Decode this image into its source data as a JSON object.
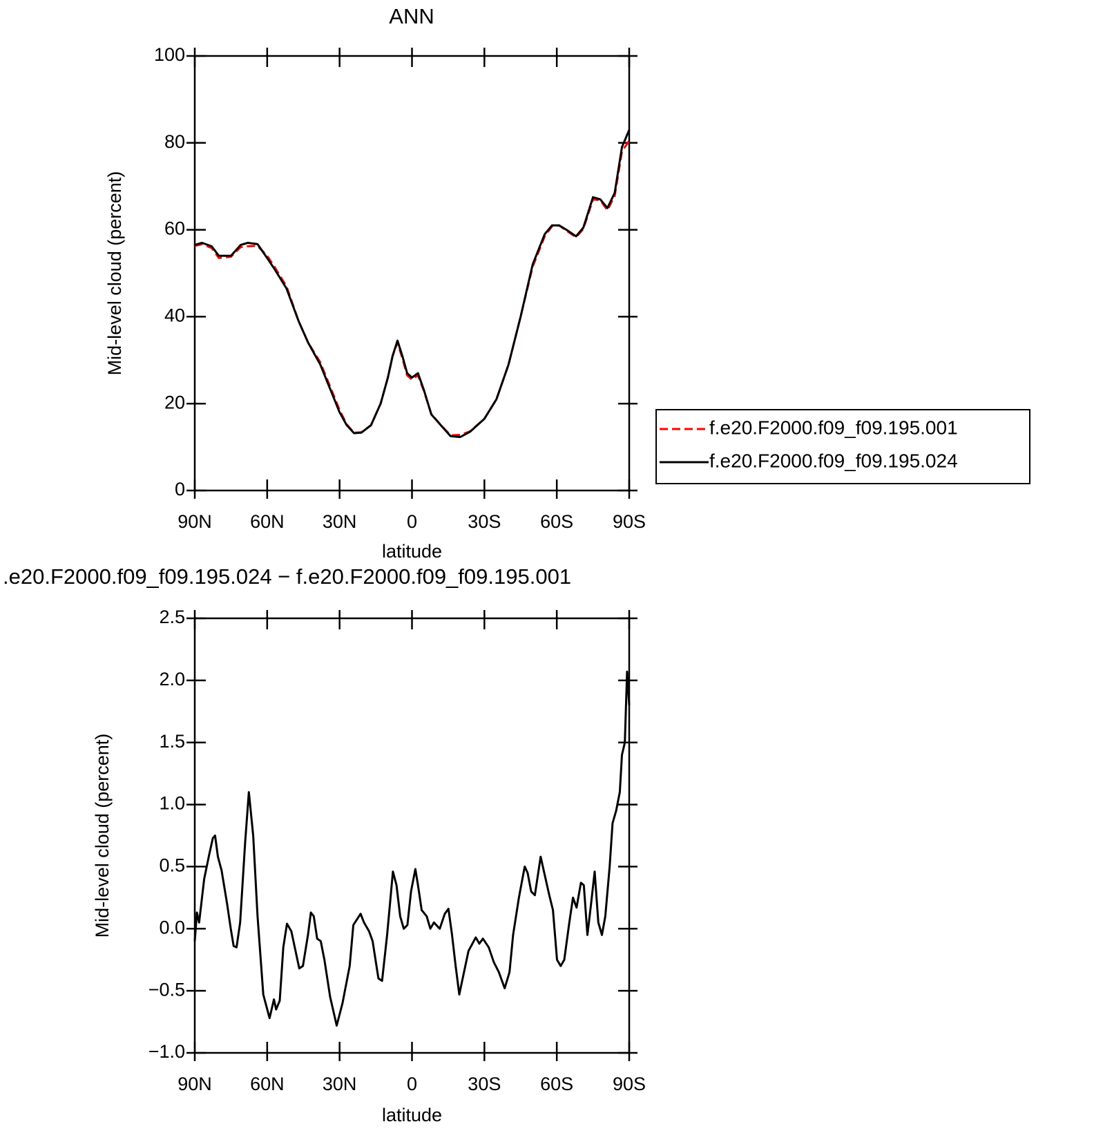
{
  "chart_data": [
    {
      "type": "line",
      "title": "ANN",
      "ylabel": "Mid-level cloud (percent)",
      "xlabel": "latitude",
      "x": [
        90,
        87,
        83,
        80,
        75,
        71,
        68,
        64,
        60,
        57,
        52,
        47,
        43,
        38,
        34,
        30,
        27,
        24,
        21,
        17,
        13,
        10,
        8,
        6,
        4,
        2,
        0,
        -2.5,
        -5,
        -8,
        -12,
        -16,
        -20,
        -24,
        -30,
        -35,
        -40,
        -45,
        -50,
        -55,
        -58,
        -61,
        -64,
        -68,
        -71,
        -75,
        -78,
        -81,
        -84,
        -87,
        -90
      ],
      "xlim": [
        90,
        -90
      ],
      "xticks": [
        {
          "value": 90,
          "label": "90N"
        },
        {
          "value": 60,
          "label": "60N"
        },
        {
          "value": 30,
          "label": "30N"
        },
        0,
        {
          "value": -30,
          "label": "30S"
        },
        {
          "value": -60,
          "label": "60S"
        },
        {
          "value": -90,
          "label": "90S"
        }
      ],
      "ylim": [
        0,
        100
      ],
      "yticks": [
        0,
        20,
        40,
        60,
        80,
        100
      ],
      "legend": "right",
      "series": [
        {
          "name": "f.e20.F2000.f09_f09.195.001",
          "color": "#ff0000",
          "dash": true,
          "values": [
            56.3,
            56.7,
            55.8,
            53.5,
            53.8,
            56,
            56.2,
            56.3,
            54,
            51.5,
            47,
            39,
            34,
            29.5,
            24,
            18.5,
            15.2,
            13.3,
            13.4,
            15,
            20,
            26,
            31,
            34,
            30.5,
            26.5,
            25.5,
            26.5,
            22.8,
            17.6,
            15,
            12.7,
            12.8,
            13.6,
            16.5,
            21,
            29,
            40,
            51.5,
            58.5,
            60.8,
            61,
            59.8,
            58.3,
            60.2,
            67,
            66.8,
            64.5,
            67.8,
            78,
            80.5
          ]
        },
        {
          "name": "f.e20.F2000.f09_f09.195.024",
          "color": "#000000",
          "dash": false,
          "values": [
            56.5,
            57,
            56.2,
            54,
            54,
            56.5,
            57,
            56.7,
            53.5,
            51,
            46.5,
            39,
            34,
            29,
            23.5,
            18,
            15,
            13.2,
            13.3,
            15,
            20,
            26,
            31,
            34.5,
            31,
            27,
            26,
            27,
            23,
            17.5,
            15,
            12.5,
            12.3,
            13.5,
            16.5,
            21,
            29,
            40,
            52,
            59,
            61,
            61,
            60,
            58.5,
            60.5,
            67.5,
            67,
            65,
            68.5,
            79,
            83
          ]
        }
      ]
    },
    {
      "type": "line",
      "title": ".e20.F2000.f09_f09.195.024 − f.e20.F2000.f09_f09.195.001",
      "ylabel": "Mid-level cloud (percent)",
      "xlabel": "latitude",
      "x": [
        90,
        89.1,
        88.2,
        86.1,
        84,
        82.5,
        81.6,
        80.4,
        78.9,
        76.6,
        75.1,
        73.9,
        72.7,
        71.2,
        69.1,
        67.6,
        65.8,
        64,
        61.6,
        59,
        57.2,
        56.3,
        54.8,
        53.3,
        51.8,
        50,
        46.7,
        45.2,
        43.1,
        41.9,
        40.7,
        39.3,
        37.8,
        36.3,
        33.9,
        31.2,
        28.8,
        25.8,
        24.3,
        21.3,
        19.9,
        17.8,
        16.3,
        13.9,
        12.4,
        10.3,
        7.9,
        6.4,
        4.9,
        3.4,
        1.9,
        0.4,
        -1.4,
        -2.5,
        -4,
        -6.1,
        -7.6,
        -9.1,
        -11.5,
        -13.6,
        -15.1,
        -16.6,
        -18.1,
        -19.6,
        -21,
        -23.4,
        -26.4,
        -27.9,
        -29.4,
        -31.8,
        -33.9,
        -36,
        -38.4,
        -40.4,
        -41.9,
        -44.3,
        -46.7,
        -47.9,
        -49.4,
        -50.9,
        -53.3,
        -54.8,
        -56.9,
        -58.4,
        -60.1,
        -61.6,
        -63.1,
        -65.2,
        -66.7,
        -68.2,
        -70,
        -71.2,
        -72.7,
        -74.2,
        -75.7,
        -77.2,
        -78.7,
        -80.1,
        -81.9,
        -83.1,
        -84.6,
        -86.1,
        -87,
        -88.2,
        -89.1,
        -90
      ],
      "values": [
        -0.1,
        0.13,
        0.05,
        0.4,
        0.6,
        0.73,
        0.75,
        0.58,
        0.47,
        0.2,
        0,
        -0.14,
        -0.15,
        0.05,
        0.7,
        1.1,
        0.75,
        0.1,
        -0.53,
        -0.72,
        -0.57,
        -0.65,
        -0.58,
        -0.15,
        0.04,
        -0.02,
        -0.32,
        -0.3,
        -0.05,
        0.13,
        0.1,
        -0.08,
        -0.1,
        -0.25,
        -0.55,
        -0.78,
        -0.6,
        -0.3,
        0.03,
        0.12,
        0.05,
        -0.02,
        -0.1,
        -0.4,
        -0.42,
        -0.05,
        0.46,
        0.35,
        0.1,
        0,
        0.03,
        0.3,
        0.48,
        0.35,
        0.15,
        0.1,
        0,
        0.05,
        0,
        0.12,
        0.16,
        -0.05,
        -0.3,
        -0.53,
        -0.4,
        -0.18,
        -0.07,
        -0.12,
        -0.08,
        -0.15,
        -0.27,
        -0.35,
        -0.48,
        -0.35,
        -0.05,
        0.25,
        0.5,
        0.45,
        0.3,
        0.27,
        0.58,
        0.45,
        0.27,
        0.15,
        -0.25,
        -0.3,
        -0.25,
        0.05,
        0.25,
        0.17,
        0.37,
        0.35,
        -0.05,
        0.2,
        0.46,
        0.05,
        -0.05,
        0.1,
        0.5,
        0.85,
        0.95,
        1.1,
        1.4,
        1.5,
        2.07,
        1.8
      ],
      "color": "#000000",
      "xlim": [
        90,
        -90
      ],
      "xticks": [
        {
          "value": 90,
          "label": "90N"
        },
        {
          "value": 60,
          "label": "60N"
        },
        {
          "value": 30,
          "label": "30N"
        },
        0,
        {
          "value": -30,
          "label": "30S"
        },
        {
          "value": -60,
          "label": "60S"
        },
        {
          "value": -90,
          "label": "90S"
        }
      ],
      "ylim": [
        -1,
        2.5
      ],
      "yticks": [
        {
          "value": -1,
          "label": "−1.0"
        },
        {
          "value": -0.5,
          "label": "−0.5"
        },
        {
          "value": 0,
          "label": "0.0"
        },
        0.5,
        {
          "value": 1,
          "label": "1.0"
        },
        1.5,
        {
          "value": 2,
          "label": "2.0"
        },
        2.5
      ]
    }
  ]
}
